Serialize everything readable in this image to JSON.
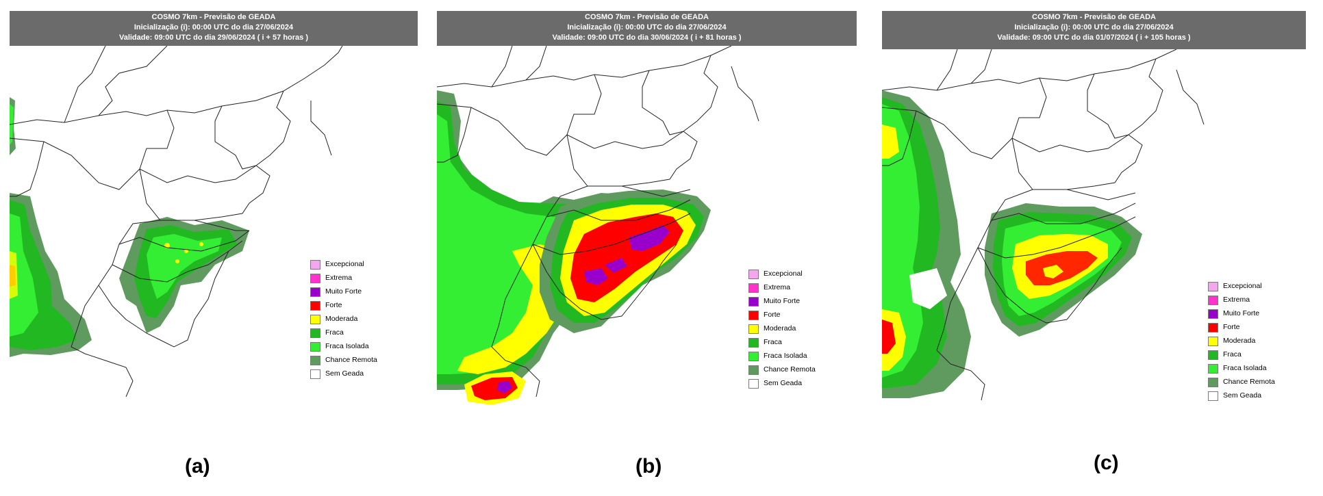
{
  "panels": [
    {
      "id": "a",
      "title": "COSMO 7km - Previsão de GEADA",
      "init": "Inicialização (i): 00:00 UTC do dia 27/06/2024",
      "valid": "Validade: 09:00 UTC do dia 29/06/2024 ( i + 57 horas )",
      "caption": "(a)"
    },
    {
      "id": "b",
      "title": "COSMO 7km - Previsão de GEADA",
      "init": "Inicialização (i): 00:00 UTC do dia 27/06/2024",
      "valid": "Validade: 09:00 UTC do dia 30/06/2024 ( i + 81 horas )",
      "caption": "(b)"
    },
    {
      "id": "c",
      "title": "COSMO 7km - Previsão de GEADA",
      "init": "Inicialização (i): 00:00 UTC do dia 27/06/2024",
      "valid": "Validade: 09:00 UTC do dia 01/07/2024 ( i + 105 horas )",
      "caption": "(c)"
    }
  ],
  "legend": [
    {
      "label": "Excepcional",
      "color": "#f4a6f0"
    },
    {
      "label": "Extrema",
      "color": "#ff33cc"
    },
    {
      "label": "Muito Forte",
      "color": "#9900cc"
    },
    {
      "label": "Forte",
      "color": "#ff0000"
    },
    {
      "label": "Moderada",
      "color": "#ffff00"
    },
    {
      "label": "Fraca",
      "color": "#22b822"
    },
    {
      "label": "Fraca Isolada",
      "color": "#33ee33"
    },
    {
      "label": "Chance Remota",
      "color": "#5f9a5f"
    },
    {
      "label": "Sem Geada",
      "color": "#ffffff"
    }
  ],
  "colors": {
    "header_bg": "#6b6b6b",
    "border": "#222222",
    "remota": "#5f9a5f",
    "isolada": "#33ee33",
    "fraca": "#22b822",
    "moderada": "#ffff00",
    "forte": "#ff0000",
    "muito_forte": "#9900cc"
  }
}
